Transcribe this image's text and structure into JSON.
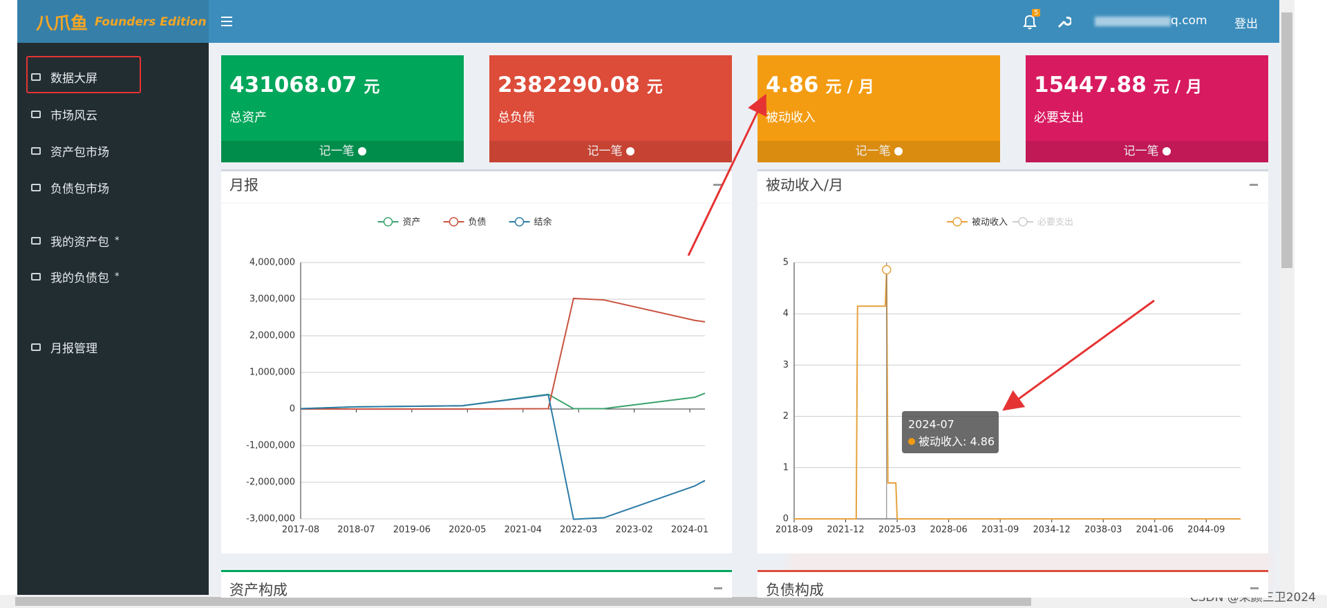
{
  "header": {
    "brand": "八爪鱼",
    "edition": "Founders Edition",
    "badge": "5",
    "email": "q.com",
    "logout": "登出"
  },
  "sidebar": [
    {
      "label": "数据大屏"
    },
    {
      "label": "市场风云"
    },
    {
      "label": "资产包市场"
    },
    {
      "label": "负债包市场"
    },
    {
      "label": "我的资产包",
      "mark": "*"
    },
    {
      "label": "我的负债包",
      "mark": "*"
    },
    {
      "label": "月报管理"
    }
  ],
  "cards": [
    {
      "value": "431068.07",
      "unit": "元",
      "label": "总资产",
      "button": "记一笔",
      "color": "#00a65a",
      "foot": "#008d4c"
    },
    {
      "value": "2382290.08",
      "unit": "元",
      "label": "总负债",
      "button": "记一笔",
      "color": "#dd4b39",
      "foot": "#c64333"
    },
    {
      "value": "4.86",
      "unit": "元 / 月",
      "label": "被动收入",
      "button": "记一笔",
      "color": "#f39c12",
      "foot": "#da8c10"
    },
    {
      "value": "15447.88",
      "unit": "元 / 月",
      "label": "必要支出",
      "button": "记一笔",
      "color": "#d81b60",
      "foot": "#c11856"
    }
  ],
  "panels": [
    {
      "title": "资产构成"
    },
    {
      "title": "负债构成"
    }
  ],
  "watermark": "CSDN @朵颜三卫2024",
  "chart_data": [
    {
      "type": "line",
      "title": "月报",
      "x": [
        "2017-08",
        "2018-07",
        "2020-04",
        "2021-09",
        "2022-02",
        "2022-08",
        "2024-02",
        "2024-04"
      ],
      "series": [
        {
          "name": "资产",
          "color": "#3da36f",
          "values": [
            10000,
            60000,
            90000,
            400000,
            10000,
            10000,
            320000,
            431068
          ]
        },
        {
          "name": "负债",
          "color": "#c9523f",
          "values": [
            0,
            0,
            0,
            10000,
            3020000,
            2980000,
            2420000,
            2382290
          ]
        },
        {
          "name": "结余",
          "color": "#2c7ba6",
          "values": [
            10000,
            60000,
            90000,
            390000,
            -3010000,
            -2970000,
            -2100000,
            -1951222
          ]
        }
      ],
      "xlim": [
        "2017-08",
        "2024-04"
      ],
      "xticks": [
        "2017-08",
        "2018-07",
        "2019-06",
        "2020-05",
        "2021-04",
        "2022-03",
        "2023-02",
        "2024-01"
      ],
      "ylim": [
        -3000000,
        4000000
      ],
      "yticks": [
        {
          "value": -3000000,
          "label": "-3,000,000"
        },
        {
          "value": -2000000,
          "label": "-2,000,000"
        },
        {
          "value": -1000000,
          "label": "-1,000,000"
        },
        0,
        {
          "value": 1000000,
          "label": "1,000,000"
        },
        {
          "value": 2000000,
          "label": "2,000,000"
        },
        {
          "value": 3000000,
          "label": "3,000,000"
        },
        {
          "value": 4000000,
          "label": "4,000,000"
        }
      ],
      "grid": true,
      "legend": "top"
    },
    {
      "type": "line",
      "title": "被动收入/月",
      "x": [
        "2018-09",
        "2022-08",
        "2022-09",
        "2024-06",
        "2024-07",
        "2024-08",
        "2025-02",
        "2025-03",
        "2046-11"
      ],
      "series": [
        {
          "name": "被动收入",
          "color": "#e6a23c",
          "values": [
            0,
            0,
            4.15,
            4.15,
            4.86,
            0.7,
            0.7,
            0,
            0
          ]
        },
        {
          "name": "必要支出",
          "color": "#cccccc",
          "hidden": true
        }
      ],
      "xlim": [
        "2018-09",
        "2046-11"
      ],
      "xticks": [
        "2018-09",
        "2021-12",
        "2025-03",
        "2028-06",
        "2031-09",
        "2034-12",
        "2038-03",
        "2041-06",
        "2044-09"
      ],
      "ylim": [
        0,
        5
      ],
      "yticks": [
        0,
        1,
        2,
        3,
        4,
        5
      ],
      "grid": true,
      "legend": "top",
      "tooltip": {
        "title": "2024-07",
        "text": "被动收入: 4.86"
      }
    }
  ]
}
